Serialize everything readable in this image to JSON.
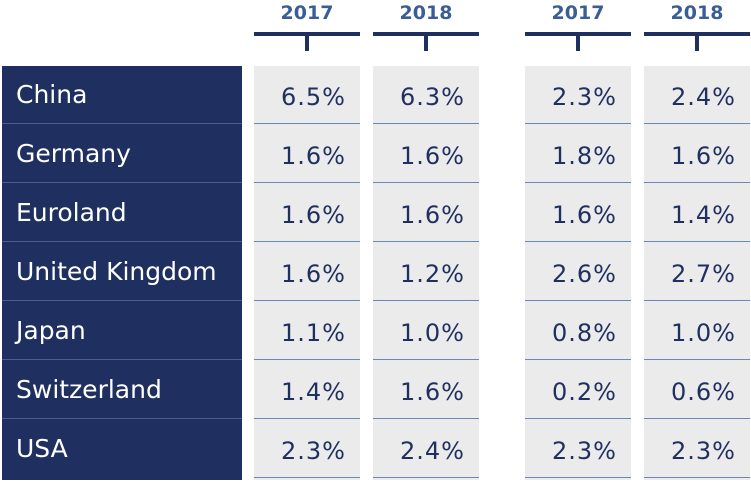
{
  "columns": [
    {
      "year": "2017"
    },
    {
      "year": "2018"
    },
    {
      "year": "2017"
    },
    {
      "year": "2018"
    }
  ],
  "rows": [
    {
      "country": "China",
      "values": [
        "6.5%",
        "6.3%",
        "2.3%",
        "2.4%"
      ]
    },
    {
      "country": "Germany",
      "values": [
        "1.6%",
        "1.6%",
        "1.8%",
        "1.6%"
      ]
    },
    {
      "country": "Euroland",
      "values": [
        "1.6%",
        "1.6%",
        "1.6%",
        "1.4%"
      ]
    },
    {
      "country": "United Kingdom",
      "values": [
        "1.6%",
        "1.2%",
        "2.6%",
        "2.7%"
      ]
    },
    {
      "country": "Japan",
      "values": [
        "1.1%",
        "1.0%",
        "0.8%",
        "1.0%"
      ]
    },
    {
      "country": "Switzerland",
      "values": [
        "1.4%",
        "1.6%",
        "0.2%",
        "0.6%"
      ]
    },
    {
      "country": "USA",
      "values": [
        "2.3%",
        "2.4%",
        "2.3%",
        "2.3%"
      ]
    }
  ],
  "colors": {
    "navy": "#1f2f5f",
    "header_text": "#3a5d96",
    "cell_bg": "#ebebeb",
    "row_rule": "#6b86b8"
  }
}
